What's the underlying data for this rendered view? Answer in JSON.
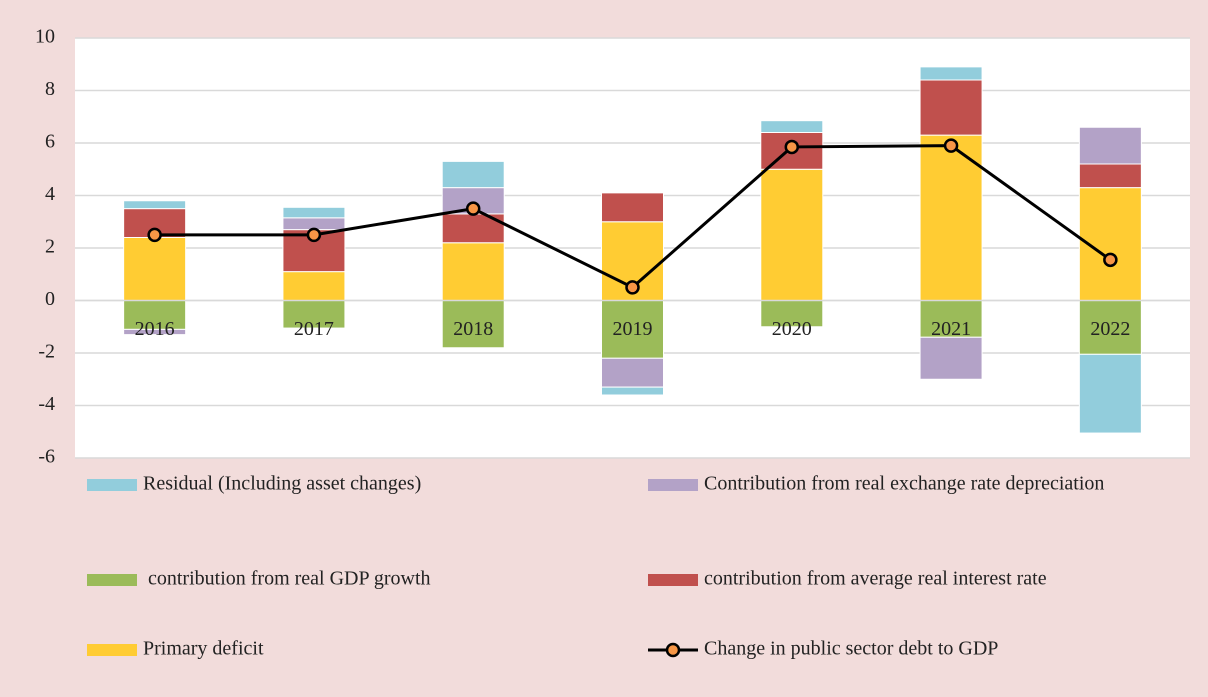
{
  "chart_data": {
    "type": "bar",
    "categories": [
      "2016",
      "2017",
      "2018",
      "2019",
      "2020",
      "2021",
      "2022"
    ],
    "series": [
      {
        "name": "Residual (Including asset changes)",
        "color": "#92cddc",
        "values": [
          0.3,
          0.4,
          1.0,
          -0.3,
          0.45,
          0.5,
          -3.0
        ]
      },
      {
        "name": "Contribution from real exchange rate depreciation",
        "color": "#b3a2c7",
        "values": [
          -0.2,
          0.45,
          1.0,
          -1.1,
          0,
          -1.6,
          1.4
        ]
      },
      {
        "name": " contribution from real GDP growth",
        "color": "#9bbb59",
        "values": [
          -1.1,
          -1.05,
          -1.8,
          -2.2,
          -1.0,
          -1.4,
          -2.05
        ]
      },
      {
        "name": "contribution from average real interest rate",
        "color": "#c0504d",
        "values": [
          1.1,
          1.6,
          1.1,
          1.1,
          1.4,
          2.1,
          0.9
        ]
      },
      {
        "name": "Primary deficit",
        "color": "#ffcc33",
        "values": [
          2.4,
          1.1,
          2.2,
          3.0,
          5.0,
          6.3,
          4.3
        ]
      },
      {
        "name": "Change in public sector debt to GDP",
        "type": "line",
        "color": "#000000",
        "marker_color": "#f79646",
        "values": [
          2.5,
          2.5,
          3.5,
          0.5,
          5.85,
          5.9,
          1.55
        ]
      }
    ],
    "ylim": [
      -6,
      10
    ],
    "yticks": [
      -6,
      -4,
      -2,
      0,
      2,
      4,
      6,
      8,
      10
    ],
    "grid": true
  }
}
